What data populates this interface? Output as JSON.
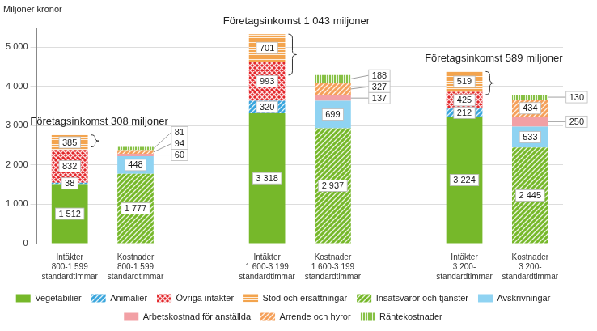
{
  "chart_data": {
    "type": "bar",
    "ylabel": "Miljoner kronor",
    "annotations": [
      "Företagsinkomst 308 miljoner",
      "Företagsinkomst 1 043 miljoner",
      "Företagsinkomst 589 miljoner"
    ],
    "categories": [
      "Intäkter\n800-1 599\nstandardtimmar",
      "Kostnader\n800-1 599\nstandardtimmar",
      null,
      "Intäkter\n1 600-3 199\nstandardtimmar",
      "Kostnader\n1 600-3 199\nstandardtimmar",
      null,
      "Intäkter\n3 200-\nstandardtimmar",
      "Kostnader\n3 200-\nstandardtimmar"
    ],
    "series": [
      {
        "name": "Vegetabilier",
        "color": "#76b82a",
        "values": [
          1512,
          null,
          null,
          3318,
          null,
          null,
          3224,
          null
        ],
        "value_labels": [
          "1 512",
          null,
          null,
          "3 318",
          null,
          null,
          "3 224",
          null
        ]
      },
      {
        "name": "Animalier",
        "color": "#3aa6dd",
        "values": [
          38,
          null,
          null,
          320,
          null,
          null,
          212,
          null
        ],
        "value_labels": [
          "38",
          null,
          null,
          "320",
          null,
          null,
          "212",
          null
        ]
      },
      {
        "name": "Övriga intäkter",
        "color": "#e3262a",
        "values": [
          832,
          null,
          null,
          993,
          null,
          null,
          425,
          null
        ],
        "value_labels": [
          "832",
          null,
          null,
          "993",
          null,
          null,
          "425",
          null
        ]
      },
      {
        "name": "Stöd och ersättningar",
        "color": "#f08c1e",
        "values": [
          385,
          null,
          null,
          701,
          null,
          null,
          519,
          null
        ],
        "value_labels": [
          "385",
          null,
          null,
          "701",
          null,
          null,
          "519",
          null
        ]
      },
      {
        "name": "Insatsvaror och tjänster",
        "color": "#76b82a",
        "values": [
          null,
          1777,
          null,
          null,
          2937,
          null,
          null,
          2445
        ],
        "value_labels": [
          null,
          "1 777",
          null,
          null,
          "2 937",
          null,
          null,
          "2 445"
        ]
      },
      {
        "name": "Avskrivningar",
        "color": "#8fd3f2",
        "values": [
          null,
          448,
          null,
          null,
          699,
          null,
          null,
          533
        ],
        "value_labels": [
          null,
          "448",
          null,
          null,
          "699",
          null,
          null,
          "533"
        ]
      },
      {
        "name": "Arbetskostnad för anställda",
        "color": "#f2a0a5",
        "values": [
          null,
          60,
          null,
          null,
          137,
          null,
          null,
          250
        ],
        "value_labels": [
          null,
          "60",
          null,
          null,
          "137",
          null,
          null,
          "250"
        ]
      },
      {
        "name": "Arrende och hyror",
        "color": "#f5a05a",
        "values": [
          null,
          94,
          null,
          null,
          327,
          null,
          null,
          434
        ],
        "value_labels": [
          null,
          "94",
          null,
          null,
          "327",
          null,
          null,
          "434"
        ]
      },
      {
        "name": "Räntekostnader",
        "color": "#76b82a",
        "values": [
          null,
          81,
          null,
          null,
          188,
          null,
          null,
          130
        ],
        "value_labels": [
          null,
          "81",
          null,
          null,
          "188",
          null,
          null,
          "130"
        ]
      }
    ],
    "ylim": [
      0,
      5500
    ],
    "yticks": [
      0,
      {
        "value": 1000,
        "label": "1 000"
      },
      {
        "value": 2000,
        "label": "2 000"
      },
      {
        "value": 3000,
        "label": "3 000"
      },
      {
        "value": 4000,
        "label": "4 000"
      },
      {
        "value": 5000,
        "label": "5 000"
      }
    ],
    "stacked": true,
    "grid": true,
    "legend": "bottom",
    "data_labels": true
  }
}
